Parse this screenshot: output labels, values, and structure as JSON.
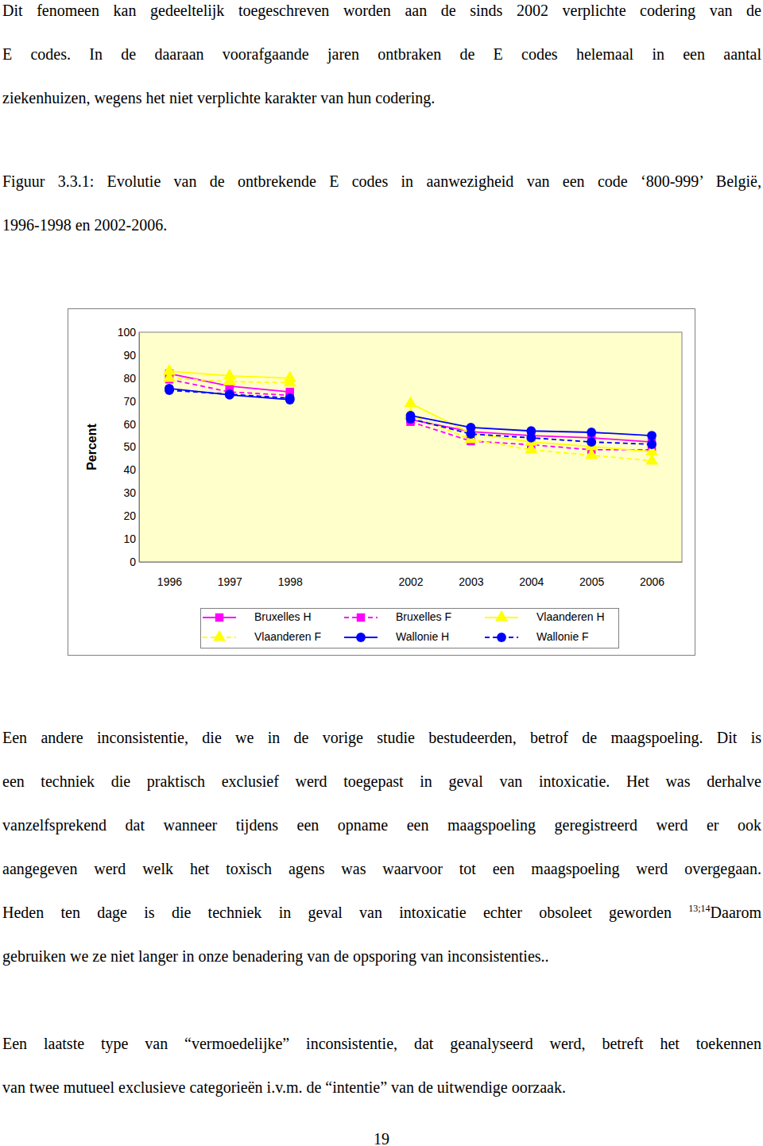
{
  "paragraphs_before": [
    [
      "Dit fenomeen kan gedeeltelijk toegeschreven worden aan de sinds 2002 verplichte codering van de",
      "E codes. In de daaraan voorafgaande jaren ontbraken de E codes helemaal in een aantal",
      "ziekenhuizen, wegens het niet verplichte karakter van hun codering."
    ]
  ],
  "caption": [
    "Figuur 3.3.1: Evolutie van de ontbrekende E codes in aanwezigheid van een code ‘800-999’ België,",
    "1996-1998 en 2002-2006."
  ],
  "chart_data": {
    "type": "line",
    "y_label": "Percent",
    "categories": [
      "1996",
      "1997",
      "1998",
      null,
      "2002",
      "2003",
      "2004",
      "2005",
      "2006"
    ],
    "ylim": [
      0,
      100
    ],
    "yticks": [
      0,
      10,
      20,
      30,
      40,
      50,
      60,
      70,
      80,
      90,
      100
    ],
    "grid": false,
    "legend": "bottom",
    "series": [
      {
        "name": "Bruxelles H",
        "color": "#ff00ff",
        "marker": "square",
        "line_style": "solid",
        "values": [
          82,
          76.5,
          74,
          null,
          62,
          56.7,
          55,
          54,
          52.2
        ]
      },
      {
        "name": "Bruxelles F",
        "color": "#ff00ff",
        "marker": "square",
        "line_style": "dashed",
        "values": [
          79.5,
          74,
          72.5,
          null,
          61,
          52.6,
          51,
          48.8,
          48.8
        ]
      },
      {
        "name": "Vlaanderen H",
        "color": "#ffff00",
        "marker": "triangle",
        "line_style": "solid",
        "values": [
          83,
          81,
          80,
          null,
          69,
          56,
          52.2,
          50.2,
          48
        ]
      },
      {
        "name": "Vlaanderen F",
        "color": "#ffff00",
        "marker": "triangle",
        "line_style": "dashed",
        "values": [
          80,
          78.5,
          78,
          null,
          64,
          53.3,
          48.8,
          46.4,
          44
        ]
      },
      {
        "name": "Wallonie H",
        "color": "#0000ff",
        "marker": "circle",
        "line_style": "solid",
        "values": [
          75.5,
          72.7,
          70.6,
          null,
          63.7,
          58.5,
          57,
          56.4,
          55
        ]
      },
      {
        "name": "Wallonie F",
        "color": "#0000ff",
        "marker": "circle",
        "line_style": "dashed",
        "values": [
          74.7,
          73,
          71.3,
          null,
          62.3,
          55.7,
          54,
          52.2,
          51.2
        ]
      }
    ]
  },
  "paragraphs_after": [
    [
      "Een andere inconsistentie, die we in de vorige studie bestudeerden, betrof de maagspoeling. Dit is",
      "een techniek die praktisch exclusief werd toegepast in geval van intoxicatie. Het was derhalve",
      "vanzelfsprekend dat wanneer tijdens een opname een maagspoeling geregistreerd werd er ook",
      "aangegeven werd welk het toxisch agens was waarvoor tot een maagspoeling werd overgegaan.",
      {
        "text": "Heden ten dage is die techniek in geval van intoxicatie echter obsoleet geworden",
        "superscript": "13;14",
        "text_after": "Daarom"
      },
      "gebruiken we ze niet langer in onze benadering van de opsporing van inconsistenties.."
    ],
    [
      "Een laatste type van “vermoedelijke” inconsistentie, dat geanalyseerd werd, betreft het toekennen",
      "van twee mutueel exclusieve categorieën i.v.m. de “intentie” van de uitwendige oorzaak."
    ]
  ],
  "page_number": "19"
}
